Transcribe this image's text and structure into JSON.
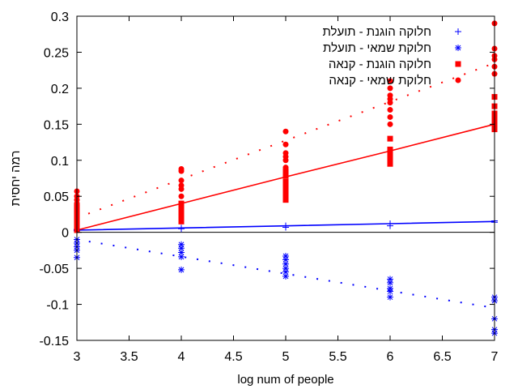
{
  "chart_data": {
    "type": "scatter",
    "xlabel": "log num of people",
    "ylabel": "רמה יחסית",
    "xlim": [
      3,
      7
    ],
    "ylim": [
      -0.15,
      0.3
    ],
    "xticks": [
      "3",
      "3.5",
      "4",
      "4.5",
      "5",
      "5.5",
      "6",
      "6.5",
      "7"
    ],
    "yticks": [
      "-0.15",
      "-0.1",
      "-0.05",
      "0",
      "0.05",
      "0.1",
      "0.15",
      "0.2",
      "0.25",
      "0.3"
    ],
    "grid": false,
    "legend_position": "top-right",
    "series": [
      {
        "name": "חלוקה הוגנת - תועלת",
        "color": "#0000ff",
        "marker": "plus",
        "points": [
          [
            3,
            0.003
          ],
          [
            3,
            0.004
          ],
          [
            3,
            0.002
          ],
          [
            4,
            0.006
          ],
          [
            4,
            0.005
          ],
          [
            5,
            0.009
          ],
          [
            5,
            0.007
          ],
          [
            6,
            0.012
          ],
          [
            6,
            0.009
          ],
          [
            7,
            0.016
          ],
          [
            7,
            0.014
          ]
        ]
      },
      {
        "name": "חלוקת שמאי - תועלת",
        "color": "#0000ff",
        "marker": "asterisk",
        "points": [
          [
            3,
            -0.01
          ],
          [
            3,
            -0.015
          ],
          [
            3,
            -0.02
          ],
          [
            3,
            -0.025
          ],
          [
            3,
            -0.035
          ],
          [
            4,
            -0.017
          ],
          [
            4,
            -0.022
          ],
          [
            4,
            -0.028
          ],
          [
            4,
            -0.034
          ],
          [
            4,
            -0.052
          ],
          [
            5,
            -0.033
          ],
          [
            5,
            -0.038
          ],
          [
            5,
            -0.044
          ],
          [
            5,
            -0.05
          ],
          [
            5,
            -0.055
          ],
          [
            5,
            -0.061
          ],
          [
            6,
            -0.065
          ],
          [
            6,
            -0.07
          ],
          [
            6,
            -0.078
          ],
          [
            6,
            -0.082
          ],
          [
            6,
            -0.09
          ],
          [
            7,
            -0.09
          ],
          [
            7,
            -0.095
          ],
          [
            7,
            -0.12
          ],
          [
            7,
            -0.135
          ],
          [
            7,
            -0.14
          ]
        ]
      },
      {
        "name": "חלוקה הוגנת - קנאה",
        "color": "#ff0000",
        "marker": "square",
        "points": [
          [
            3,
            0.003
          ],
          [
            3,
            0.008
          ],
          [
            3,
            0.012
          ],
          [
            3,
            0.016
          ],
          [
            3,
            0.02
          ],
          [
            3,
            0.025
          ],
          [
            3,
            0.03
          ],
          [
            3,
            0.035
          ],
          [
            4,
            0.015
          ],
          [
            4,
            0.018
          ],
          [
            4,
            0.022
          ],
          [
            4,
            0.026
          ],
          [
            4,
            0.03
          ],
          [
            4,
            0.035
          ],
          [
            4,
            0.04
          ],
          [
            5,
            0.045
          ],
          [
            5,
            0.05
          ],
          [
            5,
            0.055
          ],
          [
            5,
            0.06
          ],
          [
            5,
            0.065
          ],
          [
            5,
            0.07
          ],
          [
            5,
            0.078
          ],
          [
            5,
            0.085
          ],
          [
            6,
            0.095
          ],
          [
            6,
            0.1
          ],
          [
            6,
            0.105
          ],
          [
            6,
            0.11
          ],
          [
            6,
            0.115
          ],
          [
            6,
            0.13
          ],
          [
            7,
            0.143
          ],
          [
            7,
            0.148
          ],
          [
            7,
            0.152
          ],
          [
            7,
            0.158
          ],
          [
            7,
            0.165
          ],
          [
            7,
            0.175
          ],
          [
            7,
            0.188
          ]
        ]
      },
      {
        "name": "חלוקת שמאי - קנאה",
        "color": "#ff0000",
        "marker": "circle",
        "points": [
          [
            3,
            0.03
          ],
          [
            3,
            0.04
          ],
          [
            3,
            0.045
          ],
          [
            3,
            0.05
          ],
          [
            3,
            0.057
          ],
          [
            4,
            0.04
          ],
          [
            4,
            0.05
          ],
          [
            4,
            0.06
          ],
          [
            4,
            0.065
          ],
          [
            4,
            0.072
          ],
          [
            4,
            0.085
          ],
          [
            4,
            0.088
          ],
          [
            5,
            0.085
          ],
          [
            5,
            0.09
          ],
          [
            5,
            0.1
          ],
          [
            5,
            0.105
          ],
          [
            5,
            0.11
          ],
          [
            5,
            0.122
          ],
          [
            5,
            0.14
          ],
          [
            6,
            0.15
          ],
          [
            6,
            0.16
          ],
          [
            6,
            0.17
          ],
          [
            6,
            0.18
          ],
          [
            6,
            0.185
          ],
          [
            6,
            0.19
          ],
          [
            6,
            0.2
          ],
          [
            6,
            0.21
          ],
          [
            7,
            0.22
          ],
          [
            7,
            0.23
          ],
          [
            7,
            0.24
          ],
          [
            7,
            0.245
          ],
          [
            7,
            0.255
          ],
          [
            7,
            0.29
          ]
        ]
      }
    ],
    "trend_lines": [
      {
        "series": "חלוקה הוגנת - תועלת",
        "style": "solid",
        "color": "#0000ff",
        "points": [
          [
            3,
            0.003
          ],
          [
            4,
            0.006
          ],
          [
            5,
            0.009
          ],
          [
            6,
            0.012
          ],
          [
            7,
            0.015
          ]
        ]
      },
      {
        "series": "חלוקת שמאי - תועלת",
        "style": "dotted",
        "color": "#0000ff",
        "points": [
          [
            3,
            -0.01
          ],
          [
            7,
            -0.105
          ]
        ]
      },
      {
        "series": "חלוקה הוגנת - קנאה",
        "style": "solid",
        "color": "#ff0000",
        "points": [
          [
            3,
            0.003
          ],
          [
            4,
            0.04
          ],
          [
            5,
            0.077
          ],
          [
            6,
            0.113
          ],
          [
            7,
            0.15
          ]
        ]
      },
      {
        "series": "חלוקת שמאי - קנאה",
        "style": "dotted",
        "color": "#ff0000",
        "points": [
          [
            3,
            0.02
          ],
          [
            7,
            0.235
          ]
        ]
      }
    ]
  }
}
